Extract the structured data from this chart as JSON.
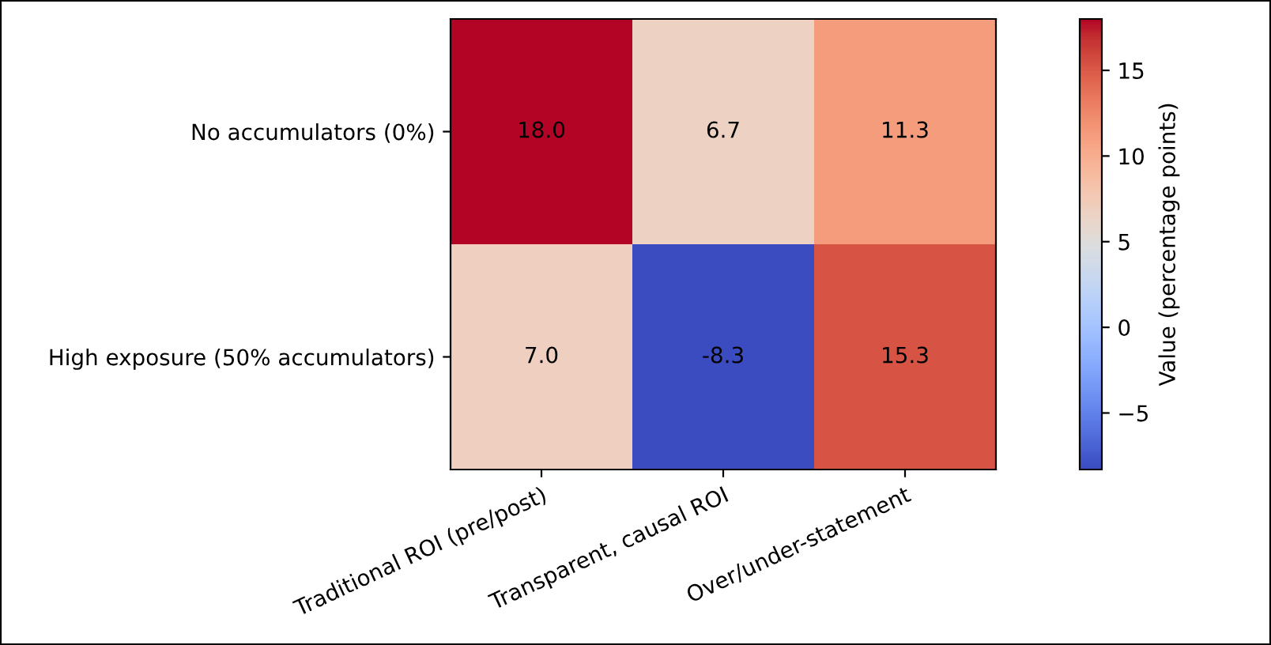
{
  "chart_data": {
    "type": "heatmap",
    "categories": [
      "Traditional ROI (pre/post)",
      "Transparent, causal ROI",
      "Over/under-statement"
    ],
    "y_categories": [
      "No accumulators (0%)",
      "High exposure (50% accumulators)"
    ],
    "cells": [
      [
        18.0,
        6.7,
        11.3
      ],
      [
        7.0,
        -8.3,
        15.3
      ]
    ],
    "cell_labels": [
      [
        "18.0",
        "6.7",
        "11.3"
      ],
      [
        "7.0",
        "-8.3",
        "15.3"
      ]
    ],
    "clim": [
      -8.3,
      18.0
    ],
    "cticks": [
      -5,
      0,
      5,
      10,
      15
    ],
    "clabel": "Value (percentage points)",
    "data_labels": true
  }
}
